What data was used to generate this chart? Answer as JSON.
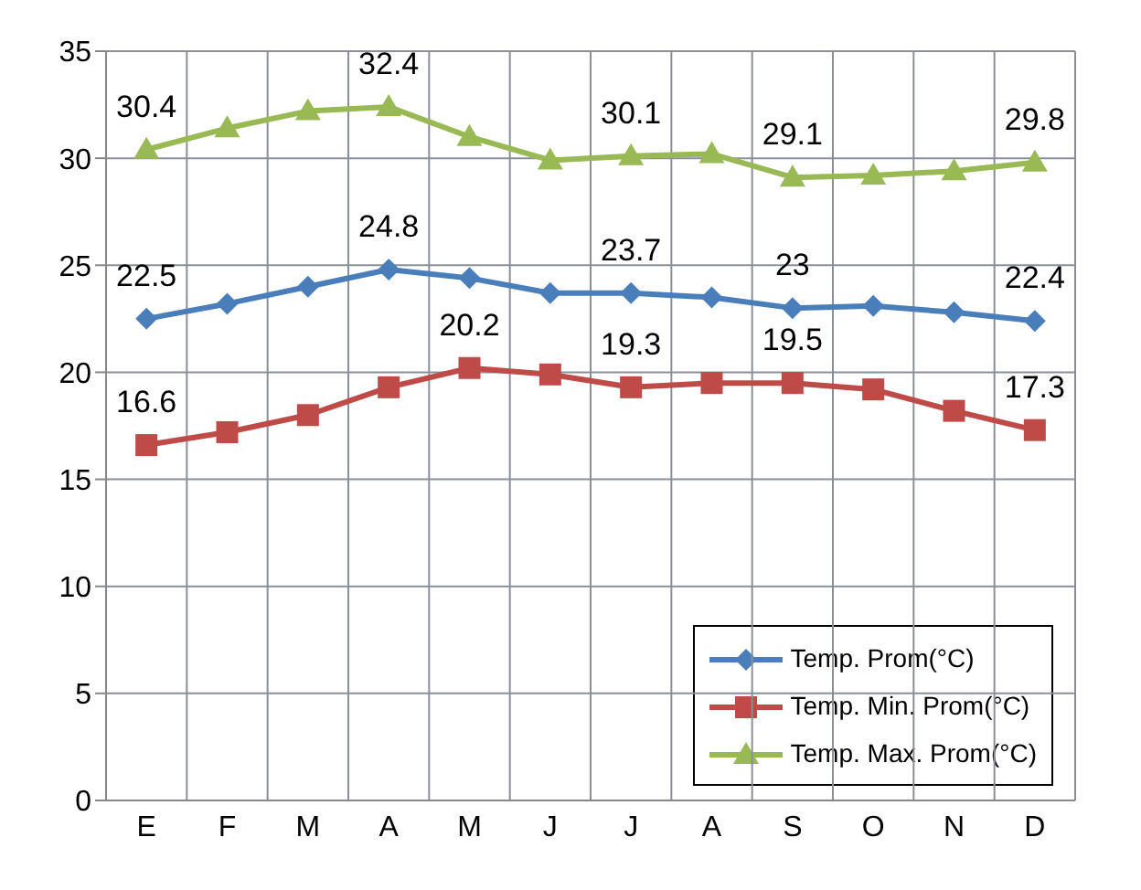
{
  "chart_data": {
    "type": "line",
    "categories": [
      "E",
      "F",
      "M",
      "A",
      "M",
      "J",
      "J",
      "A",
      "S",
      "O",
      "N",
      "D"
    ],
    "series": [
      {
        "name": "Temp. Prom(°C)",
        "color": "#4a7ebb",
        "marker": "diamond",
        "values": [
          22.5,
          23.2,
          24.0,
          24.8,
          24.4,
          23.7,
          23.7,
          23.5,
          23.0,
          23.1,
          22.8,
          22.4
        ],
        "value_labels": [
          "22.5",
          null,
          null,
          "24.8",
          null,
          null,
          "23.7",
          null,
          "23",
          null,
          null,
          "22.4"
        ]
      },
      {
        "name": "Temp. Min. Prom(°C)",
        "color": "#be4b48",
        "marker": "square",
        "values": [
          16.6,
          17.2,
          18.0,
          19.3,
          20.2,
          19.9,
          19.3,
          19.5,
          19.5,
          19.2,
          18.2,
          17.3
        ],
        "value_labels": [
          "16.6",
          null,
          null,
          null,
          "20.2",
          null,
          "19.3",
          null,
          "19.5",
          null,
          null,
          "17.3"
        ]
      },
      {
        "name": "Temp. Max. Prom(°C)",
        "color": "#98b954",
        "marker": "triangle",
        "values": [
          30.4,
          31.4,
          32.2,
          32.4,
          31.0,
          29.9,
          30.1,
          30.2,
          29.1,
          29.2,
          29.4,
          29.8
        ],
        "value_labels": [
          "30.4",
          null,
          null,
          "32.4",
          null,
          null,
          "30.1",
          null,
          "29.1",
          null,
          null,
          "29.8"
        ]
      }
    ],
    "ylim": [
      0,
      35
    ],
    "yticks": [
      0,
      5,
      10,
      15,
      20,
      25,
      30,
      35
    ],
    "grid": true,
    "legend": "bottom right"
  }
}
